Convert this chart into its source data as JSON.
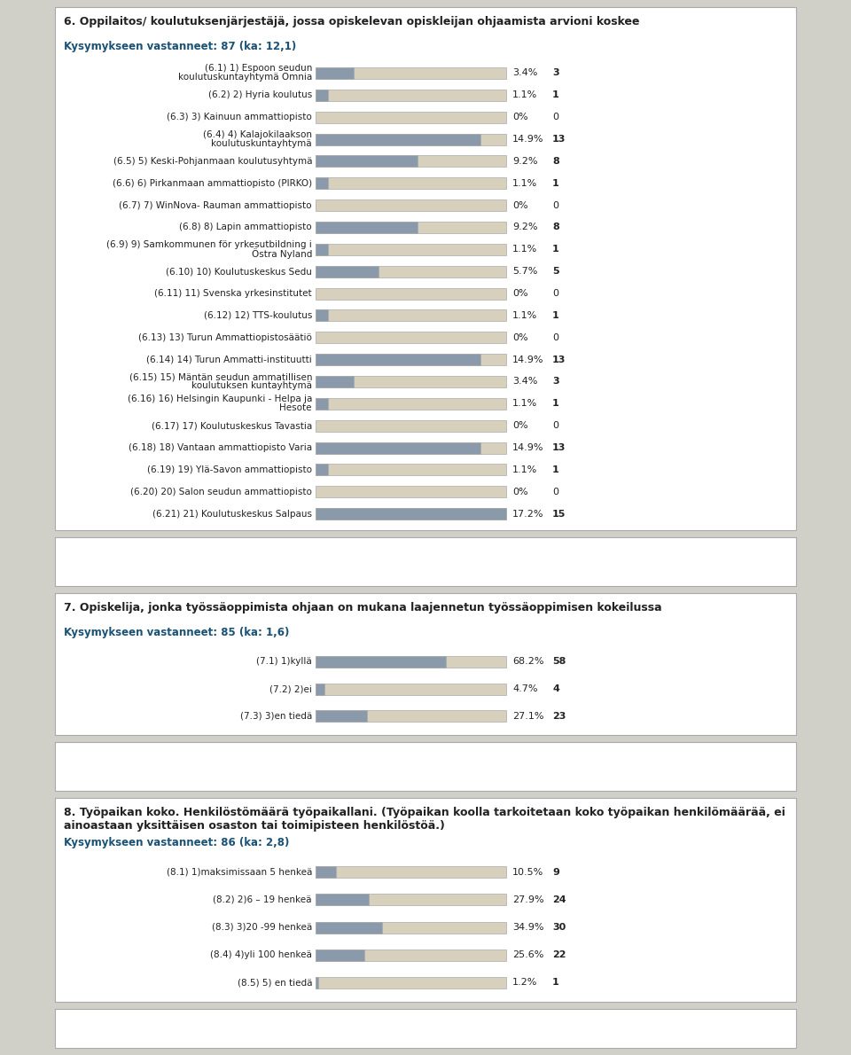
{
  "section6": {
    "title": "6. Oppilaitos/ koulutuksenjärjestäjä, jossa opiskelevan opiskleijan ohjaamista arvioni koskee",
    "subtitle": "Kysymykseen vastanneet: 87 (ka: 12,1)",
    "items": [
      {
        "label": "(6.1) 1) Espoon seudun\nkoulutuskuntayhtymä Omnia",
        "pct": 3.4,
        "n": 3
      },
      {
        "label": "(6.2) 2) Hyria koulutus",
        "pct": 1.1,
        "n": 1
      },
      {
        "label": "(6.3) 3) Kainuun ammattiopisto",
        "pct": 0.0,
        "n": 0
      },
      {
        "label": "(6.4) 4) Kalajokilaakson\nkoulutuskuntayhtymä",
        "pct": 14.9,
        "n": 13
      },
      {
        "label": "(6.5) 5) Keski-Pohjanmaan koulutusyhtymä",
        "pct": 9.2,
        "n": 8
      },
      {
        "label": "(6.6) 6) Pirkanmaan ammattiopisto (PIRKO)",
        "pct": 1.1,
        "n": 1
      },
      {
        "label": "(6.7) 7) WinNova- Rauman ammattiopisto",
        "pct": 0.0,
        "n": 0
      },
      {
        "label": "(6.8) 8) Lapin ammattiopisto",
        "pct": 9.2,
        "n": 8
      },
      {
        "label": "(6.9) 9) Samkommunen för yrkesutbildning i\nÖstra Nyland",
        "pct": 1.1,
        "n": 1
      },
      {
        "label": "(6.10) 10) Koulutuskeskus Sedu",
        "pct": 5.7,
        "n": 5
      },
      {
        "label": "(6.11) 11) Svenska yrkesinstitutet",
        "pct": 0.0,
        "n": 0
      },
      {
        "label": "(6.12) 12) TTS-koulutus",
        "pct": 1.1,
        "n": 1
      },
      {
        "label": "(6.13) 13) Turun Ammattiopistosäätiö",
        "pct": 0.0,
        "n": 0
      },
      {
        "label": "(6.14) 14) Turun Ammatti-instituutti",
        "pct": 14.9,
        "n": 13
      },
      {
        "label": "(6.15) 15) Mäntän seudun ammatillisen\nkoulutuksen kuntayhtymä",
        "pct": 3.4,
        "n": 3
      },
      {
        "label": "(6.16) 16) Helsingin Kaupunki - Helpa ja\nHesote",
        "pct": 1.1,
        "n": 1
      },
      {
        "label": "(6.17) 17) Koulutuskeskus Tavastia",
        "pct": 0.0,
        "n": 0
      },
      {
        "label": "(6.18) 18) Vantaan ammattiopisto Varia",
        "pct": 14.9,
        "n": 13
      },
      {
        "label": "(6.19) 19) Ylä-Savon ammattiopisto",
        "pct": 1.1,
        "n": 1
      },
      {
        "label": "(6.20) 20) Salon seudun ammattiopisto",
        "pct": 0.0,
        "n": 0
      },
      {
        "label": "(6.21) 21) Koulutuskeskus Salpaus",
        "pct": 17.2,
        "n": 15
      }
    ]
  },
  "section7": {
    "title": "7. Opiskelija, jonka työssäoppimista ohjaan on mukana laajennetun työssäoppimisen kokeilussa",
    "subtitle": "Kysymykseen vastanneet: 85 (ka: 1,6)",
    "items": [
      {
        "label": "(7.1) 1)kyllä",
        "pct": 68.2,
        "n": 58
      },
      {
        "label": "(7.2) 2)ei",
        "pct": 4.7,
        "n": 4
      },
      {
        "label": "(7.3) 3)en tiedä",
        "pct": 27.1,
        "n": 23
      }
    ]
  },
  "section8": {
    "title": "8. Työpaikan koko. Henkilöstömäärä työpaikallani. (Työpaikan koolla tarkoitetaan koko työpaikan henkilömäärää, ei ainoastaan yksittäisen osaston tai toimipisteen henkilöstöä.)",
    "subtitle": "Kysymykseen vastanneet: 86 (ka: 2,8)",
    "items": [
      {
        "label": "(8.1) 1)maksimissaan 5 henkeä",
        "pct": 10.5,
        "n": 9
      },
      {
        "label": "(8.2) 2)6 – 19 henkeä",
        "pct": 27.9,
        "n": 24
      },
      {
        "label": "(8.3) 3)20 -99 henkeä",
        "pct": 34.9,
        "n": 30
      },
      {
        "label": "(8.4) 4)yli 100 henkeä",
        "pct": 25.6,
        "n": 22
      },
      {
        "label": "(8.5) 5) en tiedä",
        "pct": 1.2,
        "n": 1
      }
    ]
  },
  "bar_bg_color": "#d6d0bc",
  "bar_fill_color": "#8a9aaa",
  "bar_border_color": "#aaaaaa",
  "bg_color": "#d0cfc8",
  "panel_color": "#ffffff",
  "text_color": "#222222",
  "title_color": "#222222",
  "subtitle_color": "#1a5276",
  "panel_border_color": "#aaaaaa",
  "max_pct6": 17.2,
  "max_pct7": 100,
  "max_pct8": 100,
  "fig_width": 9.6,
  "fig_height": 11.9,
  "dpi": 100
}
